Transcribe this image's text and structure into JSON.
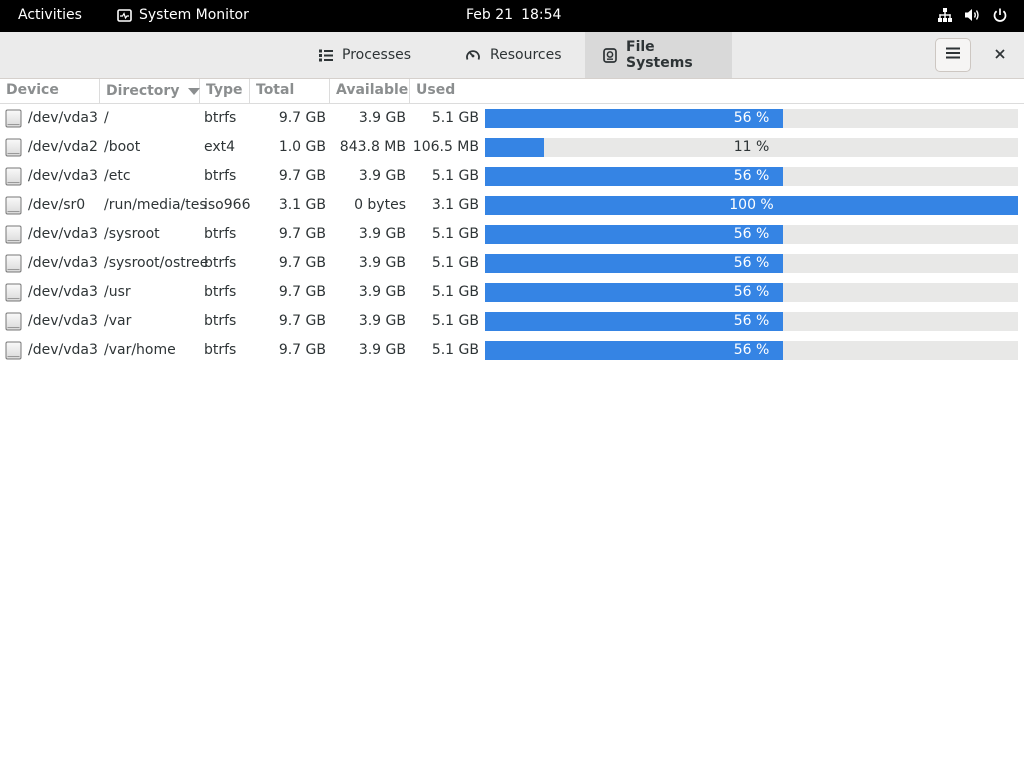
{
  "topbar": {
    "activities": "Activities",
    "app_name": "System Monitor",
    "date": "Feb 21",
    "time": "18:54",
    "icons": [
      "network-wired-icon",
      "volume-icon",
      "power-icon"
    ]
  },
  "tabs": [
    {
      "label": "Processes",
      "icon": "processes-list-icon",
      "active": false
    },
    {
      "label": "Resources",
      "icon": "gauge-icon",
      "active": false
    },
    {
      "label": "File Systems",
      "icon": "disk-icon",
      "active": true
    }
  ],
  "headerbar": {
    "menu_icon": "hamburger-menu-icon",
    "close_icon": "close-icon"
  },
  "columns": {
    "device": "Device",
    "directory": "Directory",
    "type": "Type",
    "total": "Total",
    "available": "Available",
    "used": "Used",
    "sorted_by": "directory",
    "sort_icon": "sort-descending-arrow-icon"
  },
  "colors": {
    "accent": "#3584e4",
    "bar_trough": "#e8e8e7",
    "topbar": "#000000",
    "headerbar": "#ebebeb"
  },
  "rows": [
    {
      "device": "/dev/vda3",
      "directory": "/",
      "type": "btrfs",
      "total": "9.7 GB",
      "available": "3.9 GB",
      "used": "5.1 GB",
      "percent_label": "56 %",
      "percent": 56
    },
    {
      "device": "/dev/vda2",
      "directory": "/boot",
      "type": "ext4",
      "total": "1.0 GB",
      "available": "843.8 MB",
      "used": "106.5 MB",
      "percent_label": "11 %",
      "percent": 11
    },
    {
      "device": "/dev/vda3",
      "directory": "/etc",
      "type": "btrfs",
      "total": "9.7 GB",
      "available": "3.9 GB",
      "used": "5.1 GB",
      "percent_label": "56 %",
      "percent": 56
    },
    {
      "device": "/dev/sr0",
      "directory": "/run/media/tes",
      "type": "iso966",
      "total": "3.1 GB",
      "available": "0 bytes",
      "used": "3.1 GB",
      "percent_label": "100 %",
      "percent": 100
    },
    {
      "device": "/dev/vda3",
      "directory": "/sysroot",
      "type": "btrfs",
      "total": "9.7 GB",
      "available": "3.9 GB",
      "used": "5.1 GB",
      "percent_label": "56 %",
      "percent": 56
    },
    {
      "device": "/dev/vda3",
      "directory": "/sysroot/ostree",
      "type": "btrfs",
      "total": "9.7 GB",
      "available": "3.9 GB",
      "used": "5.1 GB",
      "percent_label": "56 %",
      "percent": 56
    },
    {
      "device": "/dev/vda3",
      "directory": "/usr",
      "type": "btrfs",
      "total": "9.7 GB",
      "available": "3.9 GB",
      "used": "5.1 GB",
      "percent_label": "56 %",
      "percent": 56
    },
    {
      "device": "/dev/vda3",
      "directory": "/var",
      "type": "btrfs",
      "total": "9.7 GB",
      "available": "3.9 GB",
      "used": "5.1 GB",
      "percent_label": "56 %",
      "percent": 56
    },
    {
      "device": "/dev/vda3",
      "directory": "/var/home",
      "type": "btrfs",
      "total": "9.7 GB",
      "available": "3.9 GB",
      "used": "5.1 GB",
      "percent_label": "56 %",
      "percent": 56
    }
  ]
}
